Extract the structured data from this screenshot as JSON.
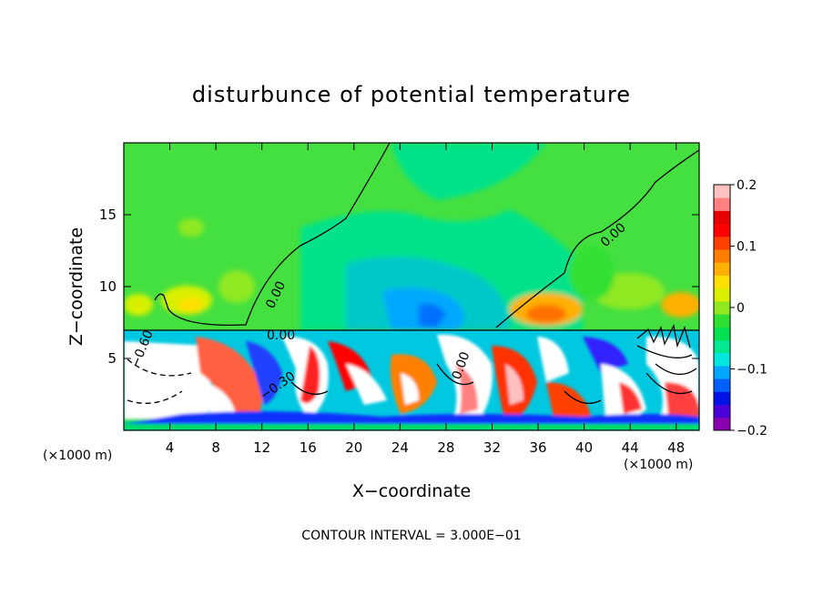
{
  "chart_data": {
    "type": "heatmap",
    "title": "disturbunce of potential temperature",
    "xlabel": "X−coordinate",
    "ylabel": "Z−coordinate",
    "x_unit": "(×1000 m)",
    "x_unit_right": "(×1000 m)",
    "xlim": [
      0,
      50
    ],
    "ylim": [
      0,
      20
    ],
    "x_ticks": [
      4,
      8,
      12,
      16,
      20,
      24,
      28,
      32,
      36,
      40,
      44,
      48
    ],
    "y_ticks": [
      5,
      10,
      15
    ],
    "colorbar": {
      "vmin": -0.2,
      "vmax": 0.2,
      "ticks": [
        0.2,
        0.1,
        0,
        -0.1,
        -0.2
      ],
      "tick_labels": [
        "0.2",
        "0.1",
        "0",
        "−0.1",
        "−0.2"
      ],
      "colors": [
        "#8a00b0",
        "#4a00d8",
        "#0014e8",
        "#0060ff",
        "#00a8ff",
        "#00e8e0",
        "#00e890",
        "#00e050",
        "#30e030",
        "#90e820",
        "#d8f000",
        "#ffe000",
        "#ffb000",
        "#ff8000",
        "#ff4000",
        "#ff0000",
        "#e80000",
        "#ff8080",
        "#ffc0c0"
      ]
    },
    "contour_labels": [
      "0.00",
      "0.00",
      "0.00",
      "0.00",
      "−0.60",
      "−0.30"
    ],
    "footnote": "CONTOUR INTERVAL = 3.000E−01"
  }
}
